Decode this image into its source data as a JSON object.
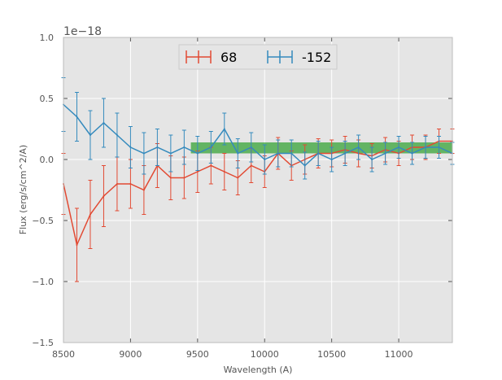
{
  "chart_data": {
    "type": "line",
    "title": "",
    "xlabel": "Wavelength (A)",
    "ylabel": "Flux (erg/s/cm^2/A)",
    "y_offset_label": "1e−18",
    "xlim": [
      8500,
      11400
    ],
    "ylim": [
      -1.5,
      1.0
    ],
    "y_scale": 1e-18,
    "x_ticks": [
      8500,
      9000,
      9500,
      10000,
      10500,
      11000
    ],
    "x_tick_labels": [
      "8500",
      "9000",
      "9500",
      "10000",
      "10500",
      "11000"
    ],
    "y_ticks": [
      -1.5,
      -1.0,
      -0.5,
      0.0,
      0.5,
      1.0
    ],
    "y_tick_labels": [
      "−1.5",
      "−1.0",
      "−0.5",
      "0.0",
      "0.5",
      "1.0"
    ],
    "grid": true,
    "legend_position": "top-center",
    "band": {
      "x_start": 9450,
      "x_end": 11400,
      "y_low": 0.05,
      "y_high": 0.14,
      "color": "#2ca02c"
    },
    "series": [
      {
        "name": "68",
        "color": "#e24a33",
        "x": [
          8500,
          8600,
          8700,
          8800,
          8900,
          9000,
          9100,
          9200,
          9300,
          9400,
          9500,
          9600,
          9700,
          9800,
          9900,
          10000,
          10100,
          10200,
          10300,
          10400,
          10500,
          10600,
          10700,
          10800,
          10900,
          11000,
          11100,
          11200,
          11300,
          11400
        ],
        "values": [
          -0.2,
          -0.7,
          -0.45,
          -0.3,
          -0.2,
          -0.2,
          -0.25,
          -0.05,
          -0.15,
          -0.15,
          -0.1,
          -0.05,
          -0.1,
          -0.15,
          -0.05,
          -0.1,
          0.05,
          -0.05,
          0.0,
          0.05,
          0.05,
          0.08,
          0.05,
          0.03,
          0.08,
          0.05,
          0.1,
          0.1,
          0.15,
          0.15
        ],
        "errors": [
          0.25,
          0.3,
          0.28,
          0.25,
          0.22,
          0.2,
          0.2,
          0.18,
          0.18,
          0.17,
          0.17,
          0.15,
          0.15,
          0.14,
          0.14,
          0.13,
          0.13,
          0.12,
          0.12,
          0.12,
          0.11,
          0.11,
          0.11,
          0.1,
          0.1,
          0.1,
          0.1,
          0.1,
          0.1,
          0.1
        ]
      },
      {
        "name": "-152",
        "color": "#348abd",
        "x": [
          8500,
          8600,
          8700,
          8800,
          8900,
          9000,
          9100,
          9200,
          9300,
          9400,
          9500,
          9600,
          9700,
          9800,
          9900,
          10000,
          10100,
          10200,
          10300,
          10400,
          10500,
          10600,
          10700,
          10800,
          10900,
          11000,
          11100,
          11200,
          11300,
          11400
        ],
        "values": [
          0.45,
          0.35,
          0.2,
          0.3,
          0.2,
          0.1,
          0.05,
          0.1,
          0.05,
          0.1,
          0.05,
          0.1,
          0.25,
          0.05,
          0.1,
          0.0,
          0.05,
          0.05,
          -0.05,
          0.05,
          0.0,
          0.05,
          0.1,
          0.0,
          0.05,
          0.1,
          0.05,
          0.1,
          0.1,
          0.05
        ],
        "errors": [
          0.22,
          0.2,
          0.2,
          0.2,
          0.18,
          0.17,
          0.17,
          0.15,
          0.15,
          0.14,
          0.14,
          0.13,
          0.13,
          0.12,
          0.12,
          0.12,
          0.11,
          0.11,
          0.11,
          0.1,
          0.1,
          0.1,
          0.1,
          0.1,
          0.09,
          0.09,
          0.09,
          0.09,
          0.09,
          0.09
        ]
      }
    ]
  }
}
